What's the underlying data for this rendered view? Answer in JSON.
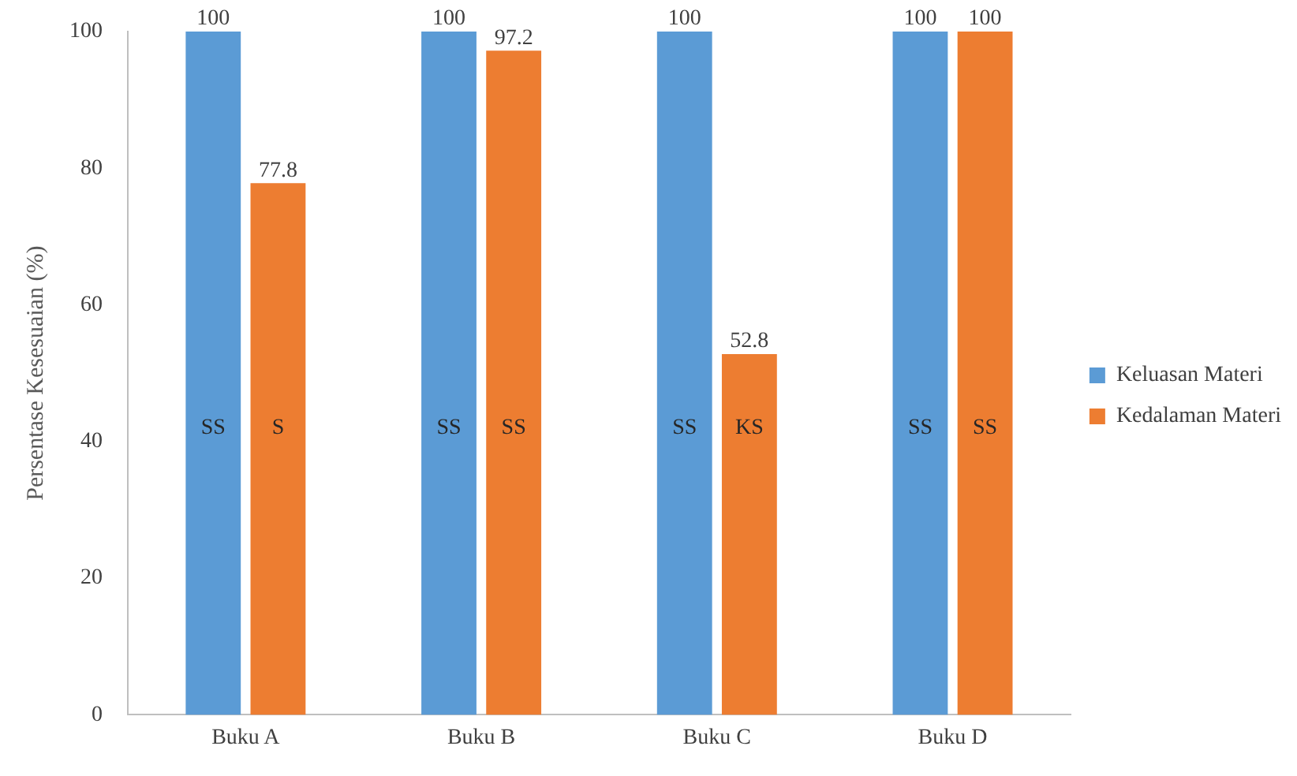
{
  "chart_data": {
    "type": "bar",
    "ylabel": "Persentase Kesesuaian (%)",
    "categories": [
      "Buku A",
      "Buku B",
      "Buku C",
      "Buku D"
    ],
    "series": [
      {
        "name": "Keluasan Materi",
        "color": "#5b9bd5",
        "values": [
          100,
          100,
          100,
          100
        ]
      },
      {
        "name": "Kedalaman Materi",
        "color": "#ed7d31",
        "values": [
          77.8,
          97.2,
          52.8,
          100
        ]
      }
    ],
    "ylim": [
      0,
      100
    ],
    "yticks": [
      0,
      20,
      40,
      60,
      80,
      100
    ],
    "grid": false,
    "legend": "right",
    "data_labels": true,
    "annotations": [
      {
        "text": "SS",
        "x": "Buku A",
        "y": 42
      },
      {
        "text": "S",
        "x": "Buku A",
        "y": 42
      },
      {
        "text": "SS",
        "x": "Buku B",
        "y": 42
      },
      {
        "text": "SS",
        "x": "Buku B",
        "y": 42
      },
      {
        "text": "SS",
        "x": "Buku C",
        "y": 42
      },
      {
        "text": "KS",
        "x": "Buku C",
        "y": 42
      },
      {
        "text": "SS",
        "x": "Buku D",
        "y": 42
      },
      {
        "text": "SS",
        "x": "Buku D",
        "y": 42
      }
    ]
  }
}
